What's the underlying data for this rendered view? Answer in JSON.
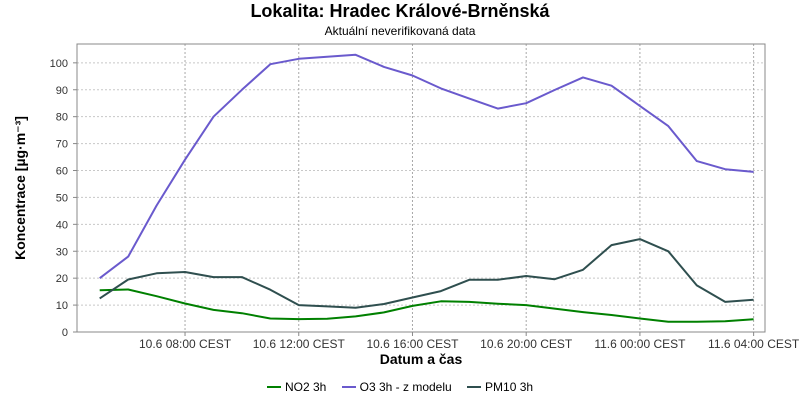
{
  "chart_data": {
    "type": "line",
    "title": "Lokalita: Hradec Králové-Brněnská",
    "subtitle": "Aktuální neverifikovaná data",
    "xlabel": "Datum a čas",
    "ylabel": "Koncentrace [µg·m⁻³]",
    "ylim": [
      0,
      107
    ],
    "yticks": [
      0,
      10,
      20,
      30,
      40,
      50,
      60,
      70,
      80,
      90,
      100
    ],
    "x_hours": [
      5,
      6,
      7,
      8,
      9,
      10,
      11,
      12,
      13,
      14,
      15,
      16,
      17,
      18,
      19,
      20,
      21,
      22,
      23,
      24,
      25,
      26,
      27,
      28
    ],
    "xlim_hours": [
      4.2,
      28.4
    ],
    "x_tick_hours": [
      8,
      12,
      16,
      20,
      24,
      28
    ],
    "x_tick_labels": [
      "10.6 08:00 CEST",
      "10.6 12:00 CEST",
      "10.6 16:00 CEST",
      "10.6 20:00 CEST",
      "11.6 00:00 CEST",
      "11.6 04:00 CEST"
    ],
    "grid": true,
    "legend_position": "bottom",
    "series": [
      {
        "name": "NO2 3h",
        "color": "#008000",
        "values": [
          15.5,
          15.8,
          13.3,
          10.6,
          8.2,
          7.0,
          5.0,
          4.8,
          4.9,
          5.8,
          7.3,
          9.7,
          11.4,
          11.2,
          10.5,
          10.0,
          8.7,
          7.4,
          6.3,
          5.0,
          3.8,
          3.8,
          4.0,
          4.7
        ]
      },
      {
        "name": "O3 3h - z modelu",
        "color": "#6a5acd",
        "values": [
          20.0,
          28.0,
          47.0,
          64.0,
          80.0,
          90.0,
          99.5,
          101.5,
          102.3,
          103.0,
          98.5,
          95.3,
          90.5,
          86.7,
          83.0,
          85.0,
          89.9,
          94.6,
          91.5,
          84.0,
          76.5,
          63.5,
          60.5,
          59.5
        ]
      },
      {
        "name": "PM10 3h",
        "color": "#2f4f4f",
        "values": [
          12.5,
          19.5,
          21.8,
          22.3,
          20.4,
          20.4,
          15.7,
          10.0,
          9.5,
          9.0,
          10.4,
          12.8,
          15.2,
          19.4,
          19.4,
          20.8,
          19.6,
          23.1,
          32.3,
          34.5,
          30.0,
          17.3,
          11.2,
          12.0
        ]
      }
    ]
  }
}
